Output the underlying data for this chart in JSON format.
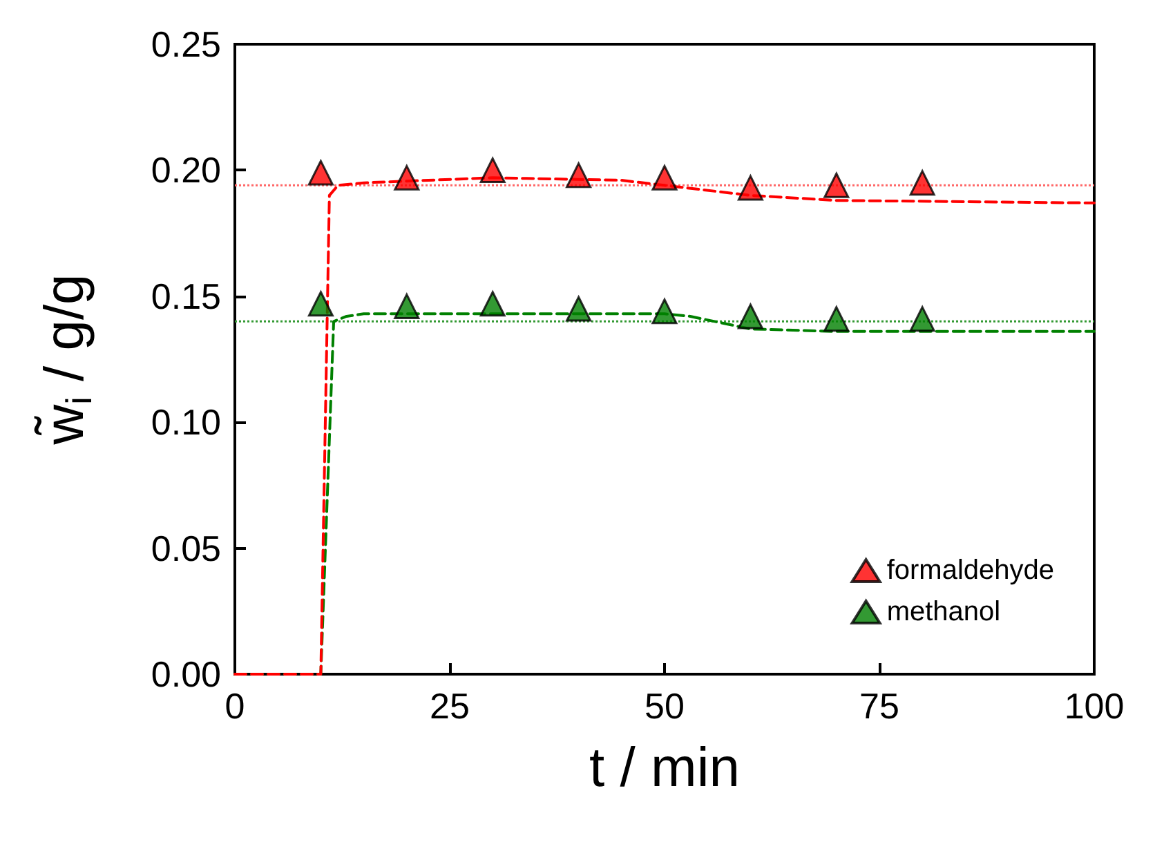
{
  "chart_data": {
    "type": "scatter",
    "xlabel": "t / min",
    "ylabel": "w̃$_{i}$ / g/g",
    "xlim": [
      0,
      100
    ],
    "xticks": [
      0,
      25,
      50,
      75,
      100
    ],
    "ylim": [
      0,
      0.25
    ],
    "yticks": [
      {
        "value": 0,
        "label": "0.00"
      },
      {
        "value": 0.05,
        "label": "0.05"
      },
      {
        "value": 0.1,
        "label": "0.10"
      },
      {
        "value": 0.15,
        "label": "0.15"
      },
      {
        "value": 0.2,
        "label": "0.20"
      },
      {
        "value": 0.25,
        "label": "0.25"
      }
    ],
    "grid": false,
    "legend": "bottom right",
    "ref_lines": [
      {
        "axis": "y",
        "value": 0.194,
        "color": "#ff6666",
        "line_style": "dotted"
      },
      {
        "axis": "y",
        "value": 0.14,
        "color": "#339933",
        "line_style": "dotted"
      }
    ],
    "series": [
      {
        "type": "line",
        "color": "#008000",
        "line_style": "dashed",
        "marker": "none",
        "x": [
          0,
          10,
          11.5,
          13,
          15,
          50,
          53,
          60,
          70,
          100
        ],
        "values": [
          0,
          0,
          0.14,
          0.142,
          0.143,
          0.143,
          0.142,
          0.137,
          0.136,
          0.136
        ]
      },
      {
        "type": "line",
        "color": "#ff0000",
        "line_style": "dashed",
        "marker": "none",
        "x": [
          0,
          10,
          11,
          12,
          15,
          30,
          45,
          50,
          60,
          70,
          100
        ],
        "values": [
          0,
          0,
          0.19,
          0.194,
          0.195,
          0.197,
          0.196,
          0.194,
          0.19,
          0.188,
          0.187
        ]
      },
      {
        "name": "formaldehyde",
        "color": "#ff0000",
        "marker": "triangle",
        "x": [
          10,
          20,
          30,
          40,
          50,
          60,
          70,
          80
        ],
        "values": [
          0.199,
          0.197,
          0.2,
          0.198,
          0.197,
          0.193,
          0.194,
          0.195
        ]
      },
      {
        "name": "methanol",
        "color": "#008000",
        "marker": "triangle",
        "x": [
          10,
          20,
          30,
          40,
          50,
          60,
          70,
          80
        ],
        "values": [
          0.147,
          0.146,
          0.147,
          0.145,
          0.144,
          0.142,
          0.141,
          0.141
        ]
      }
    ]
  }
}
